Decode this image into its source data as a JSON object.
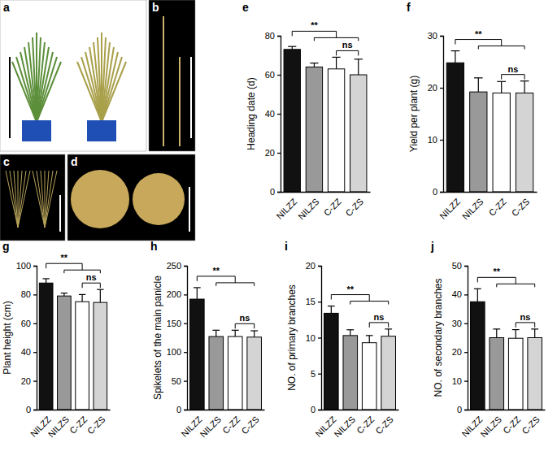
{
  "photos": [
    {
      "label": "a"
    },
    {
      "label": "b"
    },
    {
      "label": "c"
    },
    {
      "label": "d"
    }
  ],
  "chart_data": [
    {
      "type": "bar",
      "panel": "e",
      "y_label": "Heading date (d)",
      "categories": [
        "NILZZ",
        "NILZS",
        "C-ZZ",
        "C-ZS"
      ],
      "values": [
        73,
        64,
        63,
        60
      ],
      "errors": [
        1.5,
        2,
        6,
        8
      ],
      "colors": [
        "#111111",
        "#999999",
        "#ffffff",
        "#d4d4d4"
      ],
      "ylim": [
        0,
        80
      ],
      "yticks": [
        0,
        20,
        40,
        60,
        80
      ],
      "annotations": [
        {
          "text": "**",
          "groups": [
            [
              "NILZZ"
            ],
            [
              "NILZS",
              "C-ZZ",
              "C-ZS"
            ]
          ]
        },
        {
          "text": "ns",
          "groups": [
            [
              "C-ZZ"
            ],
            [
              "C-ZS"
            ]
          ]
        }
      ]
    },
    {
      "type": "bar",
      "panel": "f",
      "y_label": "Yield per plant (g)",
      "categories": [
        "NILZZ",
        "NILZS",
        "C-ZZ",
        "C-ZS"
      ],
      "values": [
        24.8,
        19.2,
        19,
        19
      ],
      "errors": [
        2.3,
        2.7,
        2.2,
        2.3
      ],
      "colors": [
        "#111111",
        "#999999",
        "#ffffff",
        "#d4d4d4"
      ],
      "ylim": [
        0,
        30
      ],
      "yticks": [
        0,
        10,
        20,
        30
      ],
      "annotations": [
        {
          "text": "**",
          "groups": [
            [
              "NILZZ"
            ],
            [
              "NILZS",
              "C-ZZ",
              "C-ZS"
            ]
          ]
        },
        {
          "text": "ns",
          "groups": [
            [
              "C-ZZ"
            ],
            [
              "C-ZS"
            ]
          ]
        }
      ]
    },
    {
      "type": "bar",
      "panel": "g",
      "y_label": "Plant height (cm)",
      "categories": [
        "NILZZ",
        "NILZS",
        "C-ZZ",
        "C-ZS"
      ],
      "values": [
        88,
        79,
        75,
        74.5
      ],
      "errors": [
        3,
        2,
        5,
        9
      ],
      "colors": [
        "#111111",
        "#999999",
        "#ffffff",
        "#d4d4d4"
      ],
      "ylim": [
        0,
        100
      ],
      "yticks": [
        0,
        20,
        40,
        60,
        80,
        100
      ],
      "annotations": [
        {
          "text": "**",
          "groups": [
            [
              "NILZZ"
            ],
            [
              "NILZS",
              "C-ZZ",
              "C-ZS"
            ]
          ]
        },
        {
          "text": "ns",
          "groups": [
            [
              "C-ZZ"
            ],
            [
              "C-ZS"
            ]
          ]
        }
      ]
    },
    {
      "type": "bar",
      "panel": "h",
      "y_label": "Spikelets of the main panicle",
      "categories": [
        "NILZZ",
        "NILZS",
        "C-ZZ",
        "C-ZS"
      ],
      "values": [
        192,
        127,
        127,
        126
      ],
      "errors": [
        20,
        11,
        11,
        11
      ],
      "colors": [
        "#111111",
        "#999999",
        "#ffffff",
        "#d4d4d4"
      ],
      "ylim": [
        0,
        250
      ],
      "yticks": [
        0,
        50,
        100,
        150,
        200,
        250
      ],
      "annotations": [
        {
          "text": "**",
          "groups": [
            [
              "NILZZ"
            ],
            [
              "NILZS",
              "C-ZZ",
              "C-ZS"
            ]
          ]
        },
        {
          "text": "ns",
          "groups": [
            [
              "C-ZZ"
            ],
            [
              "C-ZS"
            ]
          ]
        }
      ]
    },
    {
      "type": "bar",
      "panel": "i",
      "y_label": "NO. of primary branches",
      "categories": [
        "NILZZ",
        "NILZS",
        "C-ZZ",
        "C-ZS"
      ],
      "values": [
        13.4,
        10.3,
        9.3,
        10.2
      ],
      "errors": [
        1,
        0.8,
        1,
        1
      ],
      "colors": [
        "#111111",
        "#999999",
        "#ffffff",
        "#d4d4d4"
      ],
      "ylim": [
        0,
        20
      ],
      "yticks": [
        0,
        5,
        10,
        15,
        20
      ],
      "annotations": [
        {
          "text": "**",
          "groups": [
            [
              "NILZZ"
            ],
            [
              "NILZS",
              "C-ZZ",
              "C-ZS"
            ]
          ]
        },
        {
          "text": "ns",
          "groups": [
            [
              "C-ZZ"
            ],
            [
              "C-ZS"
            ]
          ]
        }
      ]
    },
    {
      "type": "bar",
      "panel": "j",
      "y_label": "NO. of secondary branches",
      "categories": [
        "NILZZ",
        "NILZS",
        "C-ZZ",
        "C-ZS"
      ],
      "values": [
        37.5,
        25,
        24.8,
        25
      ],
      "errors": [
        4.5,
        3,
        3,
        3
      ],
      "colors": [
        "#111111",
        "#999999",
        "#ffffff",
        "#d4d4d4"
      ],
      "ylim": [
        0,
        50
      ],
      "yticks": [
        0,
        10,
        20,
        30,
        40,
        50
      ],
      "annotations": [
        {
          "text": "**",
          "groups": [
            [
              "NILZZ"
            ],
            [
              "NILZS",
              "C-ZZ",
              "C-ZS"
            ]
          ]
        },
        {
          "text": "ns",
          "groups": [
            [
              "C-ZZ"
            ],
            [
              "C-ZS"
            ]
          ]
        }
      ]
    }
  ]
}
